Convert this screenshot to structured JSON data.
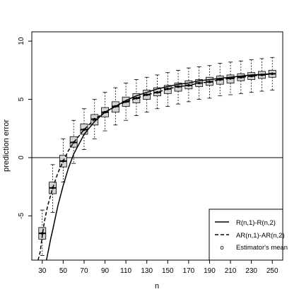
{
  "chart_data": {
    "type": "box",
    "xlabel": "n",
    "ylabel": "prediction error",
    "xlim": [
      20,
      260
    ],
    "ylim": [
      -8.8,
      10.8
    ],
    "x_ticks": [
      30,
      50,
      70,
      90,
      110,
      130,
      150,
      170,
      190,
      210,
      230,
      250
    ],
    "x_tick_labels": [
      "30",
      "50",
      "70",
      "90",
      "110",
      "130",
      "150",
      "170",
      "190",
      "210",
      "230",
      "250"
    ],
    "y_ticks": [
      -5,
      0,
      5,
      10
    ],
    "y_tick_labels": [
      "-5",
      "0",
      "5",
      "10"
    ],
    "hline": 0,
    "grid": false,
    "legend": {
      "position": "bottom-right",
      "entries": [
        {
          "label": "R(n,1)-R(n,2)",
          "style": "solid"
        },
        {
          "label": "AR(n,1)-AR(n,2)",
          "style": "dashed"
        },
        {
          "label": "Estimator's mean",
          "style": "point",
          "symbol": "o"
        }
      ]
    },
    "boxes": [
      {
        "x": 30,
        "whisker_low": -8.4,
        "q1": -7.0,
        "median": -6.5,
        "q3": -6.0,
        "whisker_high": -4.5,
        "mean": -6.5
      },
      {
        "x": 40,
        "whisker_low": -4.7,
        "q1": -3.1,
        "median": -2.6,
        "q3": -2.1,
        "whisker_high": -0.6,
        "mean": -2.6
      },
      {
        "x": 50,
        "whisker_low": -2.1,
        "q1": -0.8,
        "median": -0.3,
        "q3": 0.2,
        "whisker_high": 1.6,
        "mean": -0.3
      },
      {
        "x": 60,
        "whisker_low": -0.5,
        "q1": 0.9,
        "median": 1.3,
        "q3": 1.8,
        "whisker_high": 3.2,
        "mean": 1.3
      },
      {
        "x": 70,
        "whisker_low": 0.7,
        "q1": 2.0,
        "median": 2.4,
        "q3": 2.9,
        "whisker_high": 4.2,
        "mean": 2.4
      },
      {
        "x": 80,
        "whisker_low": 1.6,
        "q1": 2.8,
        "median": 3.3,
        "q3": 3.7,
        "whisker_high": 5.0,
        "mean": 3.3
      },
      {
        "x": 90,
        "whisker_low": 2.3,
        "q1": 3.5,
        "median": 3.9,
        "q3": 4.3,
        "whisker_high": 5.6,
        "mean": 3.9
      },
      {
        "x": 100,
        "whisker_low": 2.8,
        "q1": 3.9,
        "median": 4.4,
        "q3": 4.8,
        "whisker_high": 6.0,
        "mean": 4.4
      },
      {
        "x": 110,
        "whisker_low": 3.2,
        "q1": 4.4,
        "median": 4.8,
        "q3": 5.2,
        "whisker_high": 6.4,
        "mean": 4.8
      },
      {
        "x": 120,
        "whisker_low": 3.6,
        "q1": 4.7,
        "median": 5.1,
        "q3": 5.5,
        "whisker_high": 6.7,
        "mean": 5.1
      },
      {
        "x": 130,
        "whisker_low": 3.9,
        "q1": 5.0,
        "median": 5.4,
        "q3": 5.8,
        "whisker_high": 6.9,
        "mean": 5.4
      },
      {
        "x": 140,
        "whisker_low": 4.2,
        "q1": 5.3,
        "median": 5.6,
        "q3": 6.0,
        "whisker_high": 7.1,
        "mean": 5.6
      },
      {
        "x": 150,
        "whisker_low": 4.4,
        "q1": 5.5,
        "median": 5.9,
        "q3": 6.2,
        "whisker_high": 7.3,
        "mean": 5.9
      },
      {
        "x": 160,
        "whisker_low": 4.6,
        "q1": 5.7,
        "median": 6.1,
        "q3": 6.4,
        "whisker_high": 7.5,
        "mean": 6.1
      },
      {
        "x": 170,
        "whisker_low": 4.8,
        "q1": 5.9,
        "median": 6.2,
        "q3": 6.6,
        "whisker_high": 7.7,
        "mean": 6.2
      },
      {
        "x": 180,
        "whisker_low": 5.0,
        "q1": 6.1,
        "median": 6.4,
        "q3": 6.7,
        "whisker_high": 7.8,
        "mean": 6.4
      },
      {
        "x": 190,
        "whisker_low": 5.1,
        "q1": 6.2,
        "median": 6.5,
        "q3": 6.9,
        "whisker_high": 7.9,
        "mean": 6.5
      },
      {
        "x": 200,
        "whisker_low": 5.3,
        "q1": 6.3,
        "median": 6.7,
        "q3": 7.0,
        "whisker_high": 8.1,
        "mean": 6.7
      },
      {
        "x": 210,
        "whisker_low": 5.4,
        "q1": 6.4,
        "median": 6.8,
        "q3": 7.1,
        "whisker_high": 8.2,
        "mean": 6.8
      },
      {
        "x": 220,
        "whisker_low": 5.5,
        "q1": 6.6,
        "median": 6.9,
        "q3": 7.2,
        "whisker_high": 8.3,
        "mean": 6.9
      },
      {
        "x": 230,
        "whisker_low": 5.6,
        "q1": 6.7,
        "median": 7.0,
        "q3": 7.3,
        "whisker_high": 8.4,
        "mean": 7.0
      },
      {
        "x": 240,
        "whisker_low": 5.7,
        "q1": 6.8,
        "median": 7.1,
        "q3": 7.4,
        "whisker_high": 8.5,
        "mean": 7.1
      },
      {
        "x": 250,
        "whisker_low": 5.8,
        "q1": 6.9,
        "median": 7.2,
        "q3": 7.5,
        "whisker_high": 8.6,
        "mean": 7.2
      }
    ],
    "series": [
      {
        "name": "R(n,1)-R(n,2)",
        "style": "solid",
        "x": [
          34,
          36,
          38,
          40,
          45,
          50,
          55,
          60,
          70,
          80,
          90,
          100,
          110,
          120,
          130,
          140,
          150,
          160,
          170,
          180,
          190,
          200,
          210,
          220,
          230,
          240,
          250
        ],
        "y": [
          -8.8,
          -7.9,
          -7.0,
          -6.2,
          -4.1,
          -2.4,
          -0.9,
          0.3,
          2.0,
          3.1,
          3.9,
          4.4,
          4.9,
          5.3,
          5.6,
          5.9,
          6.1,
          6.3,
          6.4,
          6.6,
          6.7,
          6.8,
          6.9,
          7.0,
          7.1,
          7.15,
          7.2
        ]
      },
      {
        "name": "AR(n,1)-AR(n,2)",
        "style": "dashed",
        "x": [
          26,
          28,
          30,
          32,
          35,
          40,
          45,
          50,
          55,
          60,
          70,
          80,
          90,
          100,
          110,
          120,
          130,
          140,
          150,
          160,
          170,
          180,
          190,
          200,
          210,
          220,
          230,
          240,
          250
        ],
        "y": [
          -8.8,
          -8.1,
          -6.7,
          -5.5,
          -4.2,
          -2.6,
          -1.3,
          -0.3,
          0.6,
          1.3,
          2.4,
          3.3,
          3.9,
          4.4,
          4.8,
          5.1,
          5.4,
          5.6,
          5.9,
          6.1,
          6.2,
          6.4,
          6.5,
          6.7,
          6.8,
          6.9,
          7.0,
          7.1,
          7.2
        ]
      }
    ]
  }
}
